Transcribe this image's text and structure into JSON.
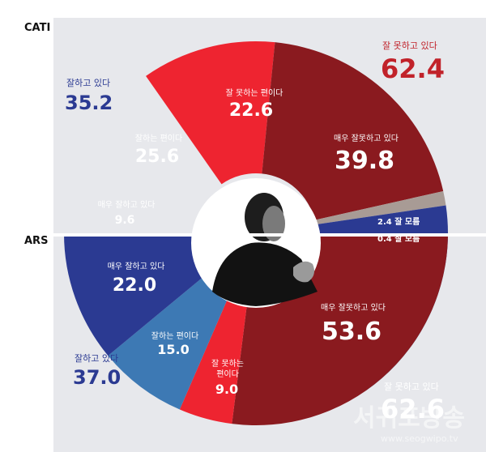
{
  "chart_data": [
    {
      "type": "pie",
      "panel_label": "CATI",
      "slices": [
        {
          "label": "잘 못하는 편이다",
          "value": 22.6,
          "color": "#ee2430"
        },
        {
          "label": "매우 잘못하고 있다",
          "value": 39.8,
          "color": "#8a1a1f"
        },
        {
          "label": "잘 모름",
          "value": 2.4,
          "color": "#a89b95"
        },
        {
          "label": "매우 잘하고 있다",
          "value": 9.6,
          "color": "#2b3a92"
        },
        {
          "label": "잘하는 편이다",
          "value": 25.6,
          "color": "#3d79b4"
        }
      ],
      "totals": [
        {
          "label": "잘하고 있다",
          "value": 35.2,
          "color": "#2b3a92"
        },
        {
          "label": "잘 못하고 있다",
          "value": 62.4,
          "color": "#c1222a"
        }
      ]
    },
    {
      "type": "pie",
      "panel_label": "ARS",
      "slices": [
        {
          "label": "잘 모름",
          "value": 0.4,
          "color": "#a89b95"
        },
        {
          "label": "매우 잘못하고 있다",
          "value": 53.6,
          "color": "#8a1a1f"
        },
        {
          "label": "잘 못하는 편이다",
          "value": 9.0,
          "color": "#ee2430"
        },
        {
          "label": "잘하는 편이다",
          "value": 15.0,
          "color": "#3d79b4"
        },
        {
          "label": "매우 잘하고 있다",
          "value": 22.0,
          "color": "#2b3a92"
        }
      ],
      "totals": [
        {
          "label": "잘하고 있다",
          "value": 37.0,
          "color": "#2b3a92"
        },
        {
          "label": "잘 못하고 있다",
          "value": 62.6,
          "color": "#c1222a"
        }
      ]
    }
  ],
  "labels": {
    "cati": "CATI",
    "ars": "ARS",
    "cati_good_total_label": "잘하고 있다",
    "cati_good_total_value": "35.2",
    "cati_bad_total_label": "잘 못하고 있다",
    "cati_bad_total_value": "62.4",
    "cati_s1_label": "잘 못하는 편이다",
    "cati_s1_value": "22.6",
    "cati_s2_label": "매우 잘못하고 있다",
    "cati_s2_value": "39.8",
    "cati_s3_text": "2.4  잘 모름",
    "cati_s4_label": "매우 잘하고 있다",
    "cati_s4_value": "9.6",
    "cati_s5_label": "잘하는 편이다",
    "cati_s5_value": "25.6",
    "ars_good_total_label": "잘하고 있다",
    "ars_good_total_value": "37.0",
    "ars_bad_total_label": "잘 못하고 있다",
    "ars_bad_total_value": "62.6",
    "ars_s1_text": "0.4  잘 모름",
    "ars_s2_label": "매우 잘못하고 있다",
    "ars_s2_value": "53.6",
    "ars_s3_label_1": "잘 못하는",
    "ars_s3_label_2": "편이다",
    "ars_s3_value": "9.0",
    "ars_s4_label": "잘하는 편이다",
    "ars_s4_value": "15.0",
    "ars_s5_label": "매우 잘하고 있다",
    "ars_s5_value": "22.0",
    "watermark": "서귀포방송",
    "watermark_url": "www.seogwipo.tv"
  },
  "colors": {
    "background": "#e7e8ec",
    "blue_dark": "#2b3a92",
    "blue_light": "#3d79b4",
    "red_bright": "#ee2430",
    "red_dark": "#8a1a1f",
    "gray": "#a89b95",
    "total_red": "#c1222a"
  }
}
